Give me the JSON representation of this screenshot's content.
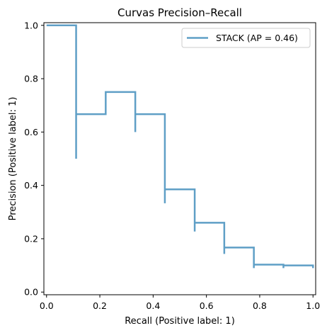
{
  "chart_data": {
    "type": "line",
    "drawstyle": "steps-post",
    "title": "Curvas Precision–Recall",
    "xlabel": "Recall (Positive label: 1)",
    "ylabel": "Precision (Positive label: 1)",
    "xlim": [
      -0.01,
      1.01
    ],
    "ylim": [
      -0.01,
      1.01
    ],
    "xticks": [
      0.0,
      0.2,
      0.4,
      0.6,
      0.8,
      1.0
    ],
    "yticks": [
      0.0,
      0.2,
      0.4,
      0.6,
      0.8,
      1.0
    ],
    "xtick_labels": [
      "0.0",
      "0.2",
      "0.4",
      "0.6",
      "0.8",
      "1.0"
    ],
    "ytick_labels": [
      "0.0",
      "0.2",
      "0.4",
      "0.6",
      "0.8",
      "1.0"
    ],
    "grid": false,
    "legend_position": "top-right",
    "series": [
      {
        "name": "STACK (AP = 0.46)",
        "color": "#5f9fc6",
        "points": [
          [
            0.0,
            1.0
          ],
          [
            0.111,
            1.0
          ],
          [
            0.111,
            0.5
          ],
          [
            0.111,
            0.667
          ],
          [
            0.222,
            0.667
          ],
          [
            0.222,
            0.75
          ],
          [
            0.333,
            0.75
          ],
          [
            0.333,
            0.6
          ],
          [
            0.333,
            0.667
          ],
          [
            0.444,
            0.667
          ],
          [
            0.444,
            0.333
          ],
          [
            0.444,
            0.385
          ],
          [
            0.556,
            0.385
          ],
          [
            0.556,
            0.227
          ],
          [
            0.556,
            0.26
          ],
          [
            0.667,
            0.26
          ],
          [
            0.667,
            0.143
          ],
          [
            0.667,
            0.167
          ],
          [
            0.778,
            0.167
          ],
          [
            0.778,
            0.09
          ],
          [
            0.778,
            0.103
          ],
          [
            0.889,
            0.103
          ],
          [
            0.889,
            0.09
          ],
          [
            0.889,
            0.1
          ],
          [
            1.0,
            0.1
          ],
          [
            1.0,
            0.09
          ]
        ]
      }
    ]
  }
}
